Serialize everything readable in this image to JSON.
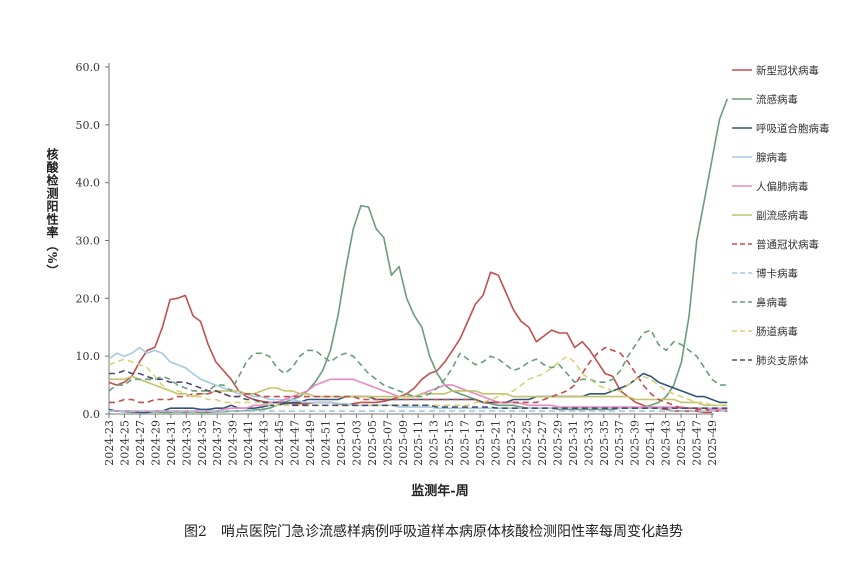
{
  "figure": {
    "caption": "图2　哨点医院门急诊流感样病例呼吸道样本病原体核酸检测阳性率每周变化趋势"
  },
  "chart_data": {
    "type": "line",
    "title": "",
    "xlabel": "监测年-周",
    "ylabel": "核酸检测阳性率（%）",
    "ylim": [
      0,
      60
    ],
    "yticks": [
      "0.0",
      "10.0",
      "20.0",
      "30.0",
      "40.0",
      "50.0",
      "60.0"
    ],
    "legend_position": "right",
    "x_tick_labels": [
      "2024-23",
      "2024-25",
      "2024-27",
      "2024-29",
      "2024-31",
      "2024-33",
      "2024-35",
      "2024-37",
      "2024-39",
      "2024-41",
      "2024-43",
      "2024-45",
      "2024-47",
      "2024-49",
      "2024-51",
      "2025-01",
      "2025-03",
      "2025-05",
      "2025-07",
      "2025-09",
      "2025-11",
      "2025-13",
      "2025-15",
      "2025-17",
      "2025-19",
      "2025-21",
      "2025-23",
      "2025-25",
      "2025-27",
      "2025-29",
      "2025-31",
      "2025-33",
      "2025-35",
      "2025-37",
      "2025-39",
      "2025-41",
      "2025-43",
      "2025-45",
      "2025-47",
      "2025-49"
    ],
    "series": [
      {
        "name": "新型冠状病毒",
        "color": "#c0504d",
        "dash": "solid",
        "values": [
          5.5,
          5.0,
          5.5,
          6.5,
          9,
          11,
          11.5,
          15,
          19.8,
          20,
          20.5,
          17,
          16,
          12,
          9,
          7.5,
          6,
          4,
          3,
          2.5,
          2.2,
          2,
          2,
          2,
          1.8,
          1.8,
          1.8,
          2,
          2,
          2,
          1.8,
          1.5,
          1.8,
          2,
          2,
          2,
          2.2,
          2.5,
          3,
          3.5,
          4.5,
          6,
          7,
          7.5,
          9,
          11,
          13,
          16,
          19,
          20.5,
          24.5,
          24,
          21,
          18,
          16,
          15,
          12.5,
          13.5,
          14.5,
          14,
          14,
          11.5,
          12.5,
          11,
          9,
          7,
          6.5,
          4,
          3,
          2,
          1.5,
          1,
          1,
          0.8,
          0.5,
          0.5,
          0.5,
          0.5,
          0.3,
          0.3
        ]
      },
      {
        "name": "流感病毒",
        "color": "#6a9d79",
        "dash": "solid",
        "values": [
          0.5,
          0.5,
          0.4,
          0.3,
          0.3,
          0.3,
          0.4,
          0.3,
          0.3,
          0.4,
          0.3,
          0.4,
          0.3,
          0.3,
          0.4,
          0.4,
          0.5,
          0.5,
          0.6,
          0.7,
          0.8,
          1,
          1.5,
          2,
          2.5,
          3,
          4,
          5.5,
          7.5,
          11,
          17,
          25,
          32,
          36,
          35.8,
          32,
          30.5,
          24,
          25.5,
          20,
          17,
          15,
          10,
          7,
          5,
          4,
          3.5,
          3,
          2.5,
          2,
          1.8,
          1.5,
          1.5,
          1.5,
          1.2,
          1,
          1,
          1,
          1,
          0.8,
          0.8,
          0.8,
          0.8,
          0.8,
          0.8,
          0.8,
          0.8,
          1,
          1,
          1,
          1.2,
          1.5,
          2,
          3,
          5,
          9,
          17,
          30,
          37,
          44,
          51,
          54.5
        ]
      },
      {
        "name": "呼吸道合胞病毒",
        "color": "#34557a",
        "dash": "solid",
        "values": [
          0.8,
          0.5,
          0.5,
          0.5,
          0.3,
          0.3,
          0.5,
          0.5,
          1,
          1,
          1,
          1,
          0.8,
          0.8,
          1,
          1,
          1.5,
          1,
          1,
          1,
          1.2,
          1.5,
          1.5,
          1.8,
          2,
          2,
          2.5,
          2.5,
          2.5,
          2.5,
          2.5,
          3,
          3,
          3,
          3,
          2.5,
          2.5,
          2.5,
          2.5,
          2.5,
          2.5,
          2.5,
          2.5,
          2.5,
          2.5,
          2.5,
          2.5,
          2.5,
          2.5,
          2,
          2,
          2,
          2,
          2.5,
          2.5,
          2.5,
          3,
          3,
          3,
          3,
          3,
          3,
          3,
          3.5,
          3.5,
          3.5,
          4,
          4.5,
          5,
          6,
          7,
          6.5,
          5.5,
          5,
          4.5,
          4,
          3.5,
          3,
          3,
          2.5,
          2,
          2
        ]
      },
      {
        "name": "腺病毒",
        "color": "#a6c9e2",
        "dash": "solid",
        "values": [
          9.5,
          10.5,
          10,
          10.5,
          11.5,
          10.5,
          11,
          10.5,
          9,
          8.5,
          8,
          7,
          6,
          5.5,
          5,
          4.5,
          4,
          3.5,
          3.5,
          3,
          3,
          2.5,
          2.5,
          2.5,
          2.5,
          2.2,
          2,
          2,
          2,
          2,
          1.8,
          1.8,
          1.5,
          1.5,
          1.5,
          1.5,
          1.5,
          1.5,
          1.2,
          1.2,
          1.2,
          1.2,
          1.2,
          1,
          1,
          1,
          1,
          1,
          1,
          1,
          1,
          1,
          1,
          1,
          1,
          1,
          1,
          1,
          1,
          1,
          1,
          1,
          1,
          1,
          1,
          1,
          1,
          1,
          1,
          1,
          1,
          1,
          1,
          1,
          1,
          1,
          1,
          1,
          1,
          1,
          1,
          1
        ]
      },
      {
        "name": "人偏肺病毒",
        "color": "#e78ac3",
        "dash": "solid",
        "values": [
          0.5,
          0.5,
          0.5,
          0.5,
          0.5,
          0.5,
          0.5,
          0.5,
          0.5,
          0.5,
          0.5,
          0.5,
          0.5,
          0.5,
          0.5,
          0.8,
          1,
          1,
          1,
          1.5,
          1.5,
          2,
          2,
          2.5,
          3,
          3.5,
          4,
          5,
          5.5,
          6,
          6,
          6,
          6,
          5.5,
          5,
          4.5,
          4,
          3.5,
          3,
          3,
          3,
          3.5,
          4,
          4.5,
          5,
          5,
          4.5,
          4,
          3.5,
          3,
          2.5,
          2,
          2,
          2,
          1.8,
          1.5,
          1.5,
          1.5,
          1.5,
          1.2,
          1.2,
          1.2,
          1.2,
          1.2,
          1.2,
          1.2,
          1.2,
          1.2,
          1.2,
          1.2,
          1.2,
          1.2,
          1.2,
          1.2,
          1.2,
          1.2,
          1,
          1,
          1,
          0.8,
          0.8,
          0.8
        ]
      },
      {
        "name": "副流感病毒",
        "color": "#c4c36a",
        "dash": "solid",
        "values": [
          6,
          6,
          6,
          6.5,
          6,
          5.5,
          5,
          4.5,
          4,
          3.5,
          3.5,
          3,
          3.5,
          3.5,
          4,
          4,
          4,
          4,
          3.5,
          3.5,
          4,
          4.5,
          4.5,
          4,
          4,
          3.5,
          3.5,
          3,
          3,
          3,
          3,
          3,
          3,
          3,
          3,
          3,
          3,
          3,
          3,
          3,
          3,
          3.5,
          3.5,
          3.5,
          3.5,
          4,
          4,
          4,
          4,
          3.5,
          3.5,
          3.5,
          3.5,
          3,
          3,
          3,
          3,
          3,
          3,
          3,
          3,
          3,
          3,
          3,
          3,
          3,
          3,
          3,
          3,
          2.5,
          2.5,
          2.5,
          2.5,
          2.5,
          2.5,
          2,
          2,
          2,
          1.5,
          1.5,
          1.5,
          1.5
        ]
      },
      {
        "name": "普通冠状病毒",
        "color": "#c0504d",
        "dash": "dashed",
        "values": [
          2,
          2,
          2.5,
          2.5,
          2,
          2,
          2.5,
          2.5,
          2.5,
          3,
          3,
          3.5,
          3.5,
          3.5,
          4,
          3.5,
          3,
          3,
          3.5,
          3.5,
          3,
          3,
          3,
          3,
          3,
          3,
          3,
          3,
          3,
          3,
          3,
          3,
          3,
          2.5,
          2.5,
          2.5,
          2.5,
          2.5,
          2.5,
          2.5,
          2.5,
          2.5,
          2.5,
          2.5,
          2.5,
          2.5,
          2.5,
          2.5,
          2.5,
          2,
          2,
          2,
          2,
          2,
          2,
          2,
          2,
          2.5,
          3,
          3.5,
          4,
          5,
          7,
          9,
          10.5,
          11.5,
          11,
          10.5,
          9,
          7,
          5,
          3.5,
          2.5,
          2,
          1.5,
          1,
          1,
          0.8,
          0.8,
          0.5,
          0.5,
          0.5
        ]
      },
      {
        "name": "博卡病毒",
        "color": "#a6c9e2",
        "dash": "dashed",
        "values": [
          0.5,
          0.5,
          0.5,
          0.5,
          0.5,
          0.5,
          0.5,
          0.5,
          0.5,
          0.5,
          0.5,
          0.5,
          0.5,
          0.5,
          0.5,
          0.5,
          0.5,
          0.5,
          0.5,
          0.5,
          0.5,
          0.5,
          0.5,
          0.5,
          0.5,
          0.5,
          0.5,
          0.5,
          0.5,
          0.5,
          0.5,
          0.5,
          0.5,
          0.5,
          0.5,
          0.5,
          0.5,
          0.5,
          0.5,
          0.5,
          0.5,
          0.5,
          0.5,
          0.5,
          0.5,
          0.5,
          0.5,
          0.5,
          0.5,
          0.5,
          0.5,
          0.5,
          0.5,
          0.5,
          0.5,
          0.5,
          0.5,
          0.5,
          0.5,
          0.5,
          0.5,
          0.5,
          0.5,
          0.5,
          0.5,
          0.5,
          0.5,
          0.5,
          0.5,
          0.5,
          0.5,
          0.5,
          0.5,
          0.5,
          0.5,
          0.5,
          0.5,
          0.5,
          0.5,
          0.5,
          0.5,
          0.5
        ]
      },
      {
        "name": "鼻病毒",
        "color": "#6a9d79",
        "dash": "dashed",
        "values": [
          4,
          5,
          5,
          6,
          6,
          6,
          6,
          6.5,
          6,
          5,
          4.5,
          4,
          4,
          4,
          5,
          5,
          4,
          6.5,
          9,
          10.5,
          10.5,
          10,
          8,
          7,
          8,
          10,
          11,
          11,
          10,
          9,
          10,
          10.5,
          10,
          8.5,
          7,
          6,
          5,
          4.5,
          4,
          3.5,
          3,
          3,
          3.5,
          4.5,
          6,
          8,
          10.5,
          9.5,
          8.5,
          9,
          10,
          9.5,
          8.5,
          7.5,
          8,
          9,
          9.5,
          8.5,
          8,
          8.5,
          7,
          5.5,
          6,
          6,
          5.5,
          5.5,
          6,
          7.5,
          10,
          12,
          14,
          14.5,
          12,
          11,
          12.5,
          12,
          11,
          10,
          8,
          6,
          5,
          5
        ]
      },
      {
        "name": "肠道病毒",
        "color": "#d8d27a",
        "dash": "dashed",
        "values": [
          8.5,
          9,
          9.5,
          9,
          8.5,
          8,
          6.5,
          5,
          4,
          4,
          3.5,
          3,
          3,
          2.5,
          2.5,
          2,
          2,
          2,
          2,
          2,
          2,
          1.5,
          1.5,
          1.5,
          1.5,
          1.5,
          1.5,
          1.5,
          1.5,
          1.5,
          1.5,
          1.5,
          1.5,
          1.5,
          1.5,
          1.5,
          1.5,
          1.5,
          1.5,
          1.5,
          1.5,
          1.5,
          1.5,
          1.5,
          1.5,
          1.5,
          1.5,
          1.5,
          2,
          2,
          2.5,
          3,
          3.5,
          4,
          5,
          6,
          6.5,
          7,
          8,
          9,
          10,
          9,
          7,
          6,
          5,
          4.5,
          4,
          4,
          5,
          6,
          6.5,
          6,
          5,
          4,
          3.5,
          3,
          2.5,
          2,
          2,
          1.5,
          1.5,
          1.5
        ]
      },
      {
        "name": "肺炎支原体",
        "color": "#4a4f70",
        "dash": "dashed",
        "values": [
          7,
          7,
          7.5,
          7,
          7,
          6.5,
          6,
          6,
          5.5,
          5.5,
          5.5,
          5,
          4.5,
          4,
          4,
          3.5,
          3,
          3,
          2.5,
          2.5,
          2,
          2,
          2,
          2,
          1.5,
          1.5,
          1.5,
          1.5,
          1.5,
          1.5,
          1.5,
          1.5,
          1.5,
          1.5,
          1.5,
          1.5,
          1.5,
          1.5,
          1.5,
          1.5,
          1.5,
          1.5,
          1.5,
          1.2,
          1.2,
          1.2,
          1.2,
          1.2,
          1.2,
          1.2,
          1.2,
          1,
          1,
          1,
          1,
          1,
          1,
          1,
          1,
          1,
          1,
          1,
          1,
          1,
          1,
          1,
          1,
          1,
          1,
          1,
          1,
          1,
          1,
          1,
          1,
          1,
          1,
          1,
          1,
          1,
          1,
          1
        ]
      }
    ]
  }
}
